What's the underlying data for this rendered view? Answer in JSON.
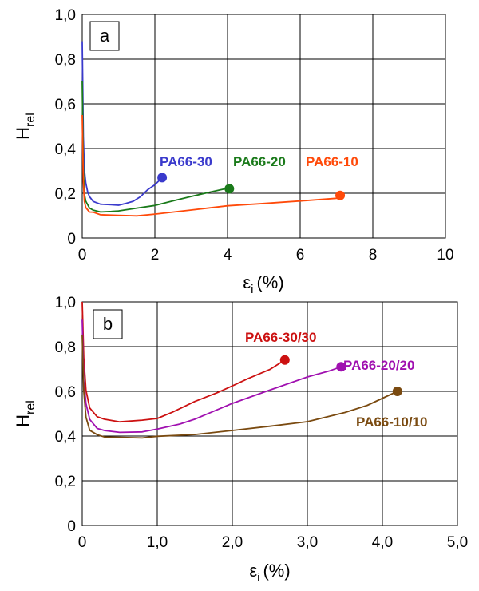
{
  "chart_data": [
    {
      "panel_label": "a",
      "type": "line",
      "ylabel_main": "H",
      "ylabel_sub": "rel",
      "xlabel_main": "ε",
      "xlabel_sub": "i",
      "xlabel_unit": "(%)",
      "xlim": [
        0,
        10
      ],
      "ylim": [
        0,
        1.0
      ],
      "xticks": [
        "0",
        "2",
        "4",
        "6",
        "8",
        "10"
      ],
      "yticks": [
        "0",
        "0,2",
        "0,4",
        "0,6",
        "0,8",
        "1,0"
      ],
      "grid": true,
      "series": [
        {
          "name": "PA66-30",
          "color": "#3a3acc",
          "x": [
            0.0,
            0.03,
            0.06,
            0.1,
            0.15,
            0.2,
            0.3,
            0.5,
            0.8,
            1.0,
            1.2,
            1.4,
            1.6,
            1.8,
            2.0,
            2.2
          ],
          "y": [
            0.88,
            0.45,
            0.3,
            0.24,
            0.2,
            0.18,
            0.16,
            0.15,
            0.15,
            0.15,
            0.16,
            0.17,
            0.19,
            0.22,
            0.24,
            0.27
          ]
        },
        {
          "name": "PA66-20",
          "color": "#1a7a1a",
          "x": [
            0.0,
            0.03,
            0.06,
            0.1,
            0.2,
            0.3,
            0.5,
            0.8,
            1.0,
            1.5,
            2.0,
            2.5,
            3.0,
            3.5,
            4.0,
            4.05
          ],
          "y": [
            0.7,
            0.32,
            0.2,
            0.17,
            0.14,
            0.13,
            0.12,
            0.12,
            0.12,
            0.13,
            0.14,
            0.16,
            0.18,
            0.2,
            0.22,
            0.22
          ]
        },
        {
          "name": "PA66-10",
          "color": "#ff4a0a",
          "x": [
            0.0,
            0.03,
            0.06,
            0.1,
            0.2,
            0.3,
            0.5,
            1.0,
            1.5,
            2.0,
            3.0,
            4.0,
            5.0,
            6.0,
            7.0,
            7.1
          ],
          "y": [
            0.55,
            0.25,
            0.16,
            0.13,
            0.11,
            0.11,
            0.1,
            0.1,
            0.1,
            0.11,
            0.13,
            0.15,
            0.16,
            0.17,
            0.18,
            0.19
          ]
        }
      ]
    },
    {
      "panel_label": "b",
      "type": "line",
      "ylabel_main": "H",
      "ylabel_sub": "rel",
      "xlabel_main": "ε",
      "xlabel_sub": "i",
      "xlabel_unit": "(%)",
      "xlim": [
        0,
        5.0
      ],
      "ylim": [
        0,
        1.0
      ],
      "xticks": [
        "0",
        "1,0",
        "2,0",
        "3,0",
        "4,0",
        "5,0"
      ],
      "yticks": [
        "0",
        "0,2",
        "0,4",
        "0,6",
        "0,8",
        "1,0"
      ],
      "grid": true,
      "series": [
        {
          "name": "PA66-30/30",
          "color": "#cc1111",
          "x": [
            0.0,
            0.02,
            0.05,
            0.1,
            0.2,
            0.3,
            0.5,
            0.8,
            1.0,
            1.2,
            1.5,
            1.8,
            2.0,
            2.2,
            2.5,
            2.7
          ],
          "y": [
            1.0,
            0.75,
            0.6,
            0.52,
            0.48,
            0.47,
            0.46,
            0.47,
            0.48,
            0.51,
            0.56,
            0.6,
            0.63,
            0.66,
            0.7,
            0.74
          ]
        },
        {
          "name": "PA66-20/20",
          "color": "#a010b0",
          "x": [
            0.0,
            0.02,
            0.05,
            0.1,
            0.2,
            0.3,
            0.5,
            0.8,
            1.0,
            1.3,
            1.5,
            2.0,
            2.5,
            3.0,
            3.3,
            3.45
          ],
          "y": [
            0.92,
            0.65,
            0.55,
            0.48,
            0.44,
            0.43,
            0.42,
            0.42,
            0.43,
            0.45,
            0.47,
            0.54,
            0.6,
            0.66,
            0.69,
            0.71
          ]
        },
        {
          "name": "PA66-10/10",
          "color": "#7a4a10",
          "x": [
            0.0,
            0.02,
            0.05,
            0.1,
            0.2,
            0.3,
            0.5,
            0.8,
            1.0,
            1.5,
            2.0,
            2.5,
            3.0,
            3.5,
            3.8,
            4.2
          ],
          "y": [
            0.85,
            0.6,
            0.48,
            0.42,
            0.4,
            0.39,
            0.39,
            0.39,
            0.4,
            0.41,
            0.43,
            0.45,
            0.47,
            0.51,
            0.54,
            0.6
          ]
        }
      ]
    }
  ]
}
